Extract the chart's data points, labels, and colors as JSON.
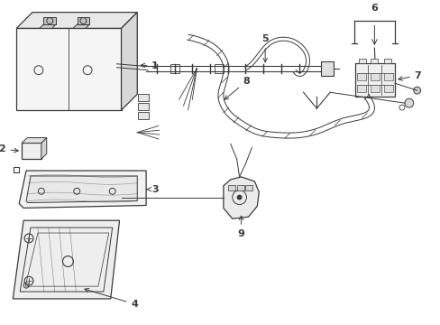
{
  "background_color": "#ffffff",
  "line_color": "#3a3a3a",
  "fig_width": 4.89,
  "fig_height": 3.6,
  "dpi": 100
}
